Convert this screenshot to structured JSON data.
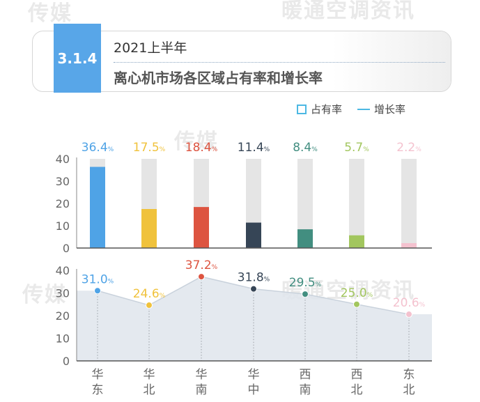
{
  "header": {
    "section_number": "3.1.4",
    "period": "2021上半年",
    "title": "离心机市场各区域占有率和增长率"
  },
  "legend": {
    "share_label": "占有率",
    "growth_label": "增长率"
  },
  "watermarks": [
    "传媒",
    "暖通空调资讯"
  ],
  "colors": {
    "tag": "#58a6e8",
    "legend": "#4cb8e3",
    "bar_track": "#e5e5e5",
    "area_fill": "#dfe5ec",
    "axis": "#666666"
  },
  "chart_data": [
    {
      "type": "bar",
      "categories": [
        "华东",
        "华北",
        "华南",
        "华中",
        "西南",
        "西北",
        "东北"
      ],
      "series": [
        {
          "name": "占有率",
          "values": [
            36.4,
            17.5,
            18.4,
            11.4,
            8.4,
            5.7,
            2.2
          ]
        }
      ],
      "value_suffix": "%",
      "colors": [
        "#4fa3e6",
        "#f0c23c",
        "#dd5440",
        "#364556",
        "#428e80",
        "#a2c65e",
        "#f4c2cf"
      ],
      "ylim": [
        0,
        40
      ],
      "yticks": [
        0,
        10,
        20,
        30,
        40
      ],
      "track_max": 40
    },
    {
      "type": "line",
      "categories": [
        "华东",
        "华北",
        "华南",
        "华中",
        "西南",
        "西北",
        "东北"
      ],
      "series": [
        {
          "name": "增长率",
          "values": [
            31.0,
            24.6,
            37.2,
            31.8,
            29.5,
            25.0,
            20.6
          ]
        }
      ],
      "value_suffix": "%",
      "colors": [
        "#4fa3e6",
        "#f0c23c",
        "#dd5440",
        "#364556",
        "#428e80",
        "#a2c65e",
        "#f4c2cf"
      ],
      "ylim": [
        0,
        40
      ],
      "yticks": [
        0,
        10,
        20,
        30,
        40
      ]
    }
  ]
}
